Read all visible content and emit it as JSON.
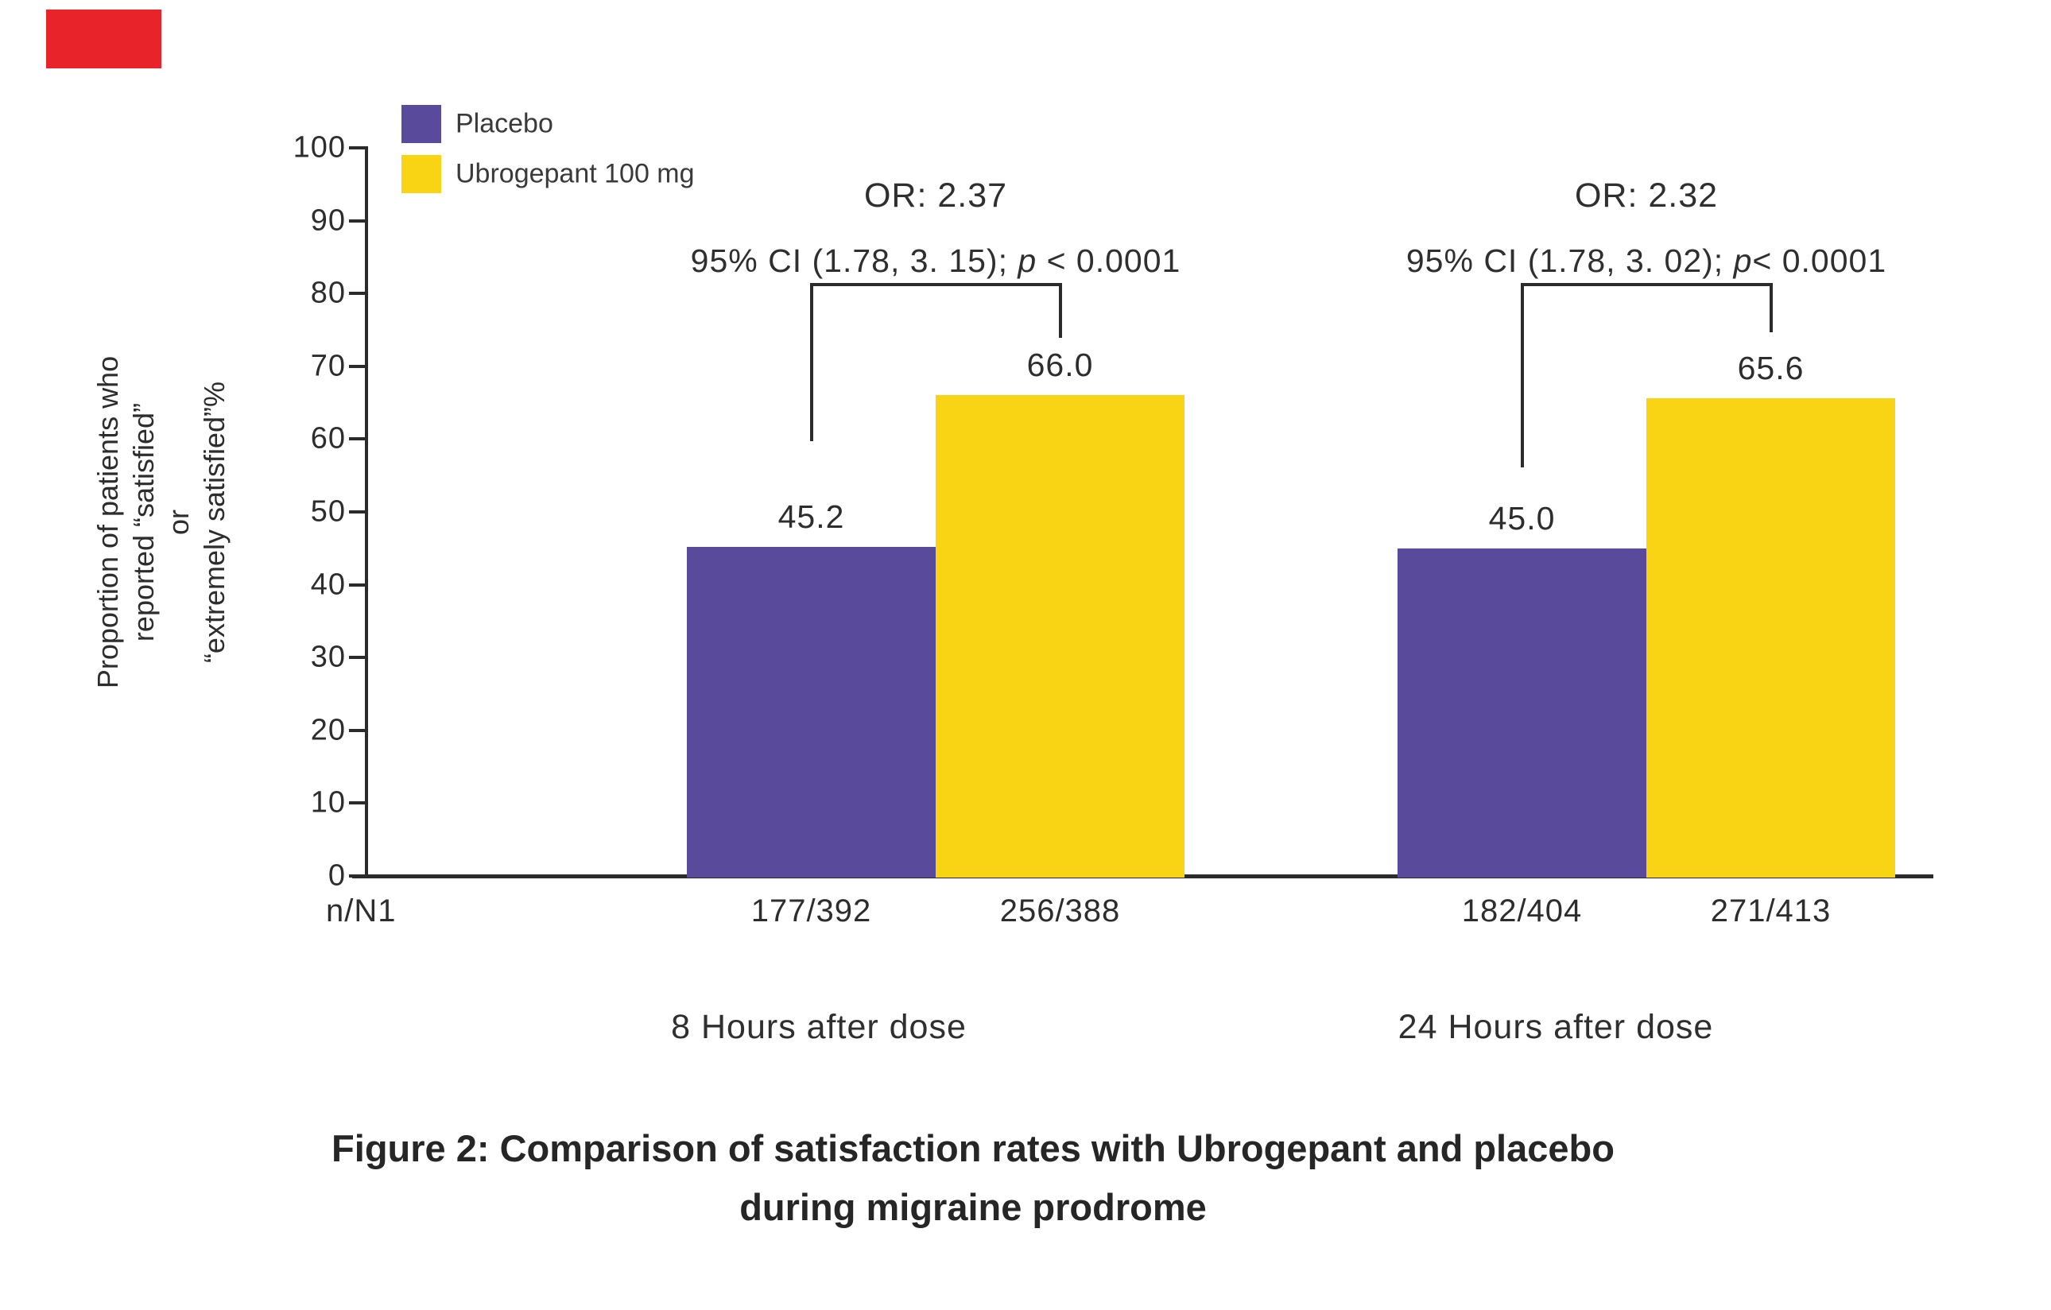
{
  "figure": {
    "marker_color": "#e8232a",
    "title_line1": "Figure 2: Comparison of satisfaction rates with Ubrogepant and placebo",
    "title_line2": "during migraine prodrome"
  },
  "legend": {
    "items": [
      {
        "label": "Placebo",
        "color": "#5a4a9b"
      },
      {
        "label": "Ubrogepant 100 mg",
        "color": "#f8d414"
      }
    ]
  },
  "x_axis": {
    "row_header": "n/N1",
    "group_labels": [
      "8 Hours after dose",
      "24 Hours after dose"
    ]
  },
  "chart_data": {
    "type": "bar",
    "title": "Figure 2: Comparison of satisfaction rates with Ubrogepant and placebo during migraine prodrome",
    "ylabel": "Proportion of patients who reported “satisfied” or “extremely satisfied”%",
    "ylabel_lines": [
      "Proportion of patients who",
      "reported “satisfied”",
      "or",
      "“extremely satisfied”%"
    ],
    "ylim": [
      0,
      100
    ],
    "yticks": [
      0,
      10,
      20,
      30,
      40,
      50,
      60,
      70,
      80,
      90,
      100
    ],
    "categories": [
      "8 Hours after dose",
      "24 Hours after dose"
    ],
    "series": [
      {
        "name": "Placebo",
        "color": "#5a4a9b",
        "values": [
          45.2,
          45.0
        ],
        "n_over_N": [
          "177/392",
          "182/404"
        ]
      },
      {
        "name": "Ubrogepant 100 mg",
        "color": "#f8d414",
        "values": [
          66.0,
          65.6
        ],
        "n_over_N": [
          "256/388",
          "271/413"
        ]
      }
    ],
    "annotations": [
      {
        "or": "OR: 2.37",
        "ci_prefix": "95% CI (1.78, 3. 15); ",
        "p": "p",
        "ci_suffix": " < 0.0001"
      },
      {
        "or": "OR: 2.32",
        "ci_prefix": "95% CI (1.78, 3. 02); ",
        "p": "p",
        "ci_suffix": "< 0.0001"
      }
    ],
    "legend_position": "top-left",
    "grid": false
  }
}
